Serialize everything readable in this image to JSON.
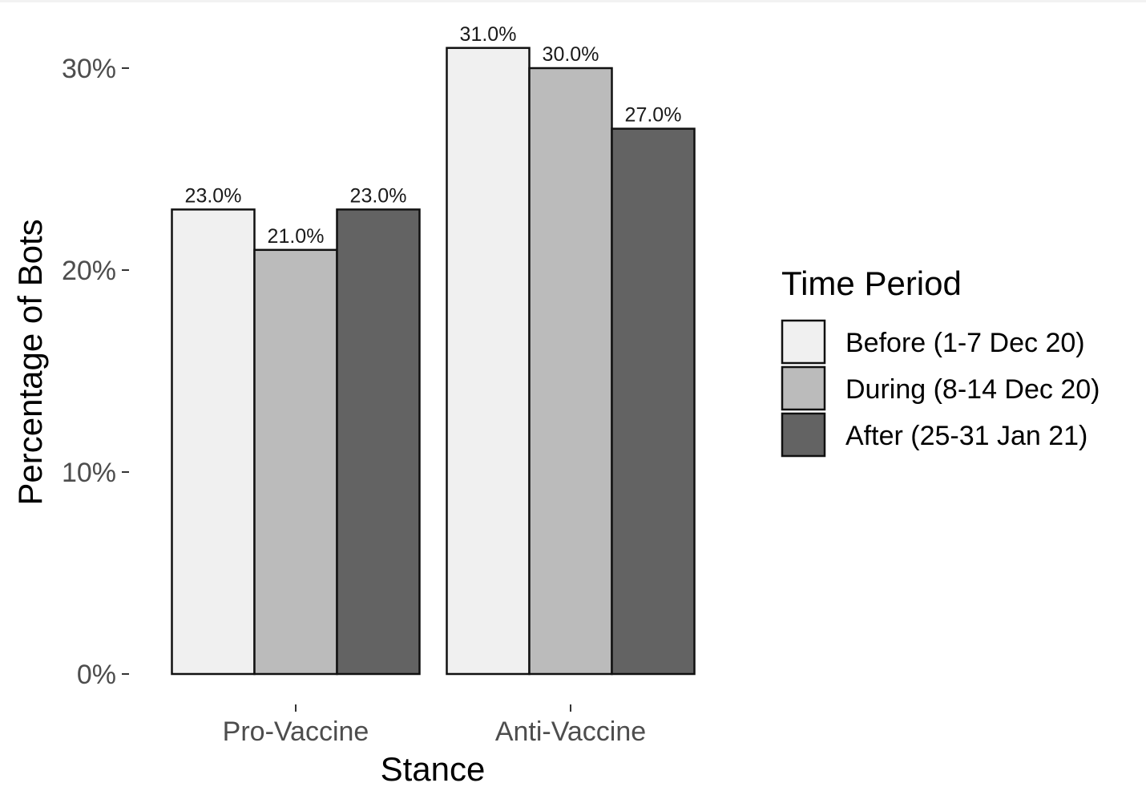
{
  "chart_data": {
    "type": "bar",
    "title": "",
    "xlabel": "Stance",
    "ylabel": "Percentage of Bots",
    "categories": [
      "Pro-Vaccine",
      "Anti-Vaccine"
    ],
    "series": [
      {
        "name": "Before (1-7 Dec 20)",
        "values": [
          23.0,
          31.0
        ],
        "labels": [
          "23.0%",
          "31.0%"
        ],
        "color": "#f0f0f0"
      },
      {
        "name": "During (8-14 Dec 20)",
        "values": [
          21.0,
          30.0
        ],
        "labels": [
          "21.0%",
          "30.0%"
        ],
        "color": "#bbbbbb"
      },
      {
        "name": "After (25-31 Jan 21)",
        "values": [
          23.0,
          27.0
        ],
        "labels": [
          "23.0%",
          "27.0%"
        ],
        "color": "#636363"
      }
    ],
    "ylim": [
      0,
      32.5
    ],
    "yticks": [
      0,
      10,
      20,
      30
    ],
    "ytick_labels": [
      "0%",
      "10%",
      "20%",
      "30%"
    ],
    "legend": {
      "title": "Time Period",
      "position": "right"
    },
    "grid": false
  }
}
